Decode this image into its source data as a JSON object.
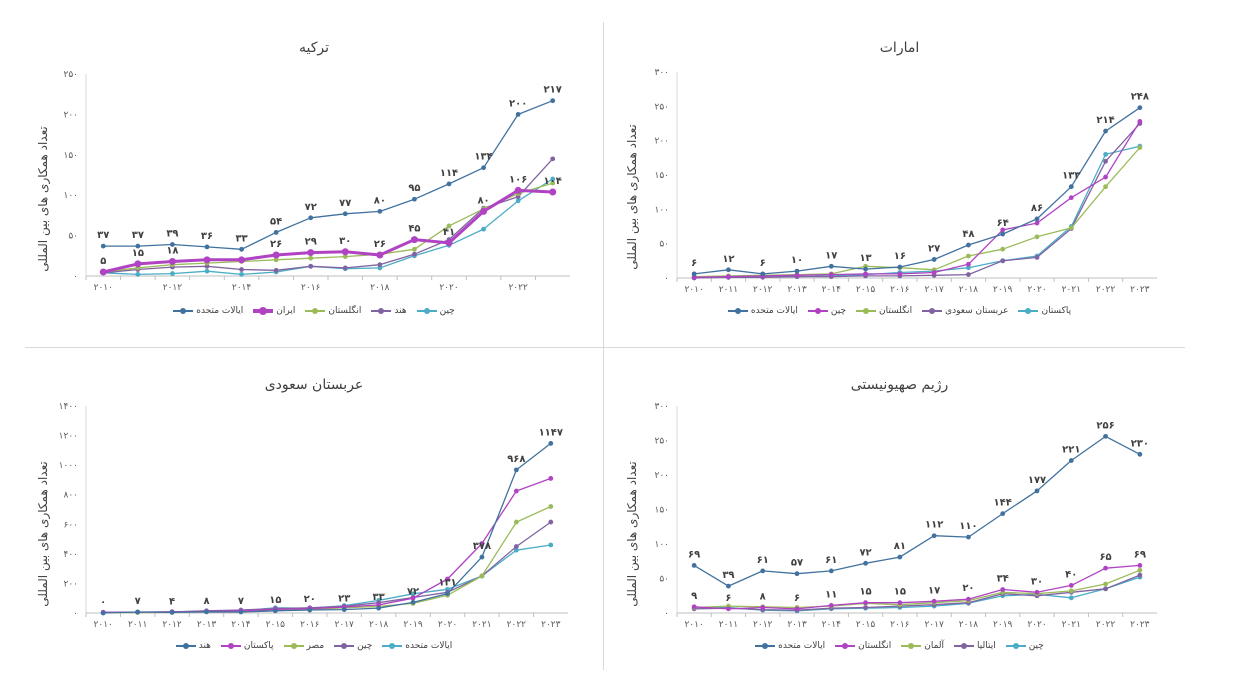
{
  "chart_data": [
    {
      "id": "turkey",
      "type": "line",
      "title": "ترکیه",
      "ylabel": "تعداد همکاری های بین المللی",
      "ylim": [
        0,
        250
      ],
      "yticks": [
        "۰",
        "۵۰",
        "۱۰۰",
        "۱۵۰",
        "۲۰۰",
        "۲۵۰"
      ],
      "x": [
        2010,
        2011,
        2012,
        2013,
        2014,
        2015,
        2016,
        2017,
        2018,
        2019,
        2020,
        2021,
        2022,
        2023
      ],
      "xlabels": [
        "۲۰۱۰",
        "",
        "۲۰۱۲",
        "",
        "۲۰۱۴",
        "",
        "۲۰۱۶",
        "",
        "۲۰۱۸",
        "",
        "۲۰۲۰",
        "",
        "۲۰۲۲",
        ""
      ],
      "series": [
        {
          "name": "ایالات متحده",
          "color": "#41729f",
          "width": 1.3,
          "values": [
            37,
            37,
            39,
            36,
            33,
            54,
            72,
            77,
            80,
            95,
            114,
            134,
            200,
            217
          ],
          "labels": [
            "۳۷",
            "۳۷",
            "۳۹",
            "۳۶",
            "۳۳",
            "۵۴",
            "۷۲",
            "۷۷",
            "۸۰",
            "۹۵",
            "۱۱۴",
            "۱۳۴",
            "۲۰۰",
            "۲۱۷"
          ]
        },
        {
          "name": "ایران",
          "color": "#b043c3",
          "width": 3,
          "values": [
            5,
            15,
            18,
            20,
            20,
            26,
            29,
            30,
            26,
            45,
            41,
            80,
            106,
            104
          ],
          "labels": [
            "۵",
            "۱۵",
            "۱۸",
            "",
            "",
            "۲۶",
            "۲۹",
            "۳۰",
            "۲۶",
            "۴۵",
            "۴۱",
            "۸۰",
            "۱۰۶",
            "۱۰۴"
          ]
        },
        {
          "name": "انگلستان",
          "color": "#9bbb59",
          "width": 1.3,
          "values": [
            5,
            10,
            14,
            16,
            18,
            20,
            22,
            24,
            27,
            33,
            62,
            83,
            102,
            115
          ]
        },
        {
          "name": "هند",
          "color": "#8064a2",
          "width": 1.3,
          "values": [
            4,
            8,
            11,
            12,
            8,
            7,
            12,
            10,
            14,
            27,
            45,
            84,
            98,
            145
          ]
        },
        {
          "name": "چین",
          "color": "#4bacc6",
          "width": 1.3,
          "values": [
            4,
            2,
            3,
            6,
            2,
            5,
            12,
            9,
            10,
            25,
            38,
            58,
            93,
            120
          ]
        }
      ]
    },
    {
      "id": "emirates",
      "type": "line",
      "title": "امارات",
      "ylabel": "تعداد همکاری های بین المللی",
      "ylim": [
        0,
        300
      ],
      "yticks": [
        "۰",
        "۵۰",
        "۱۰۰",
        "۱۵۰",
        "۲۰۰",
        "۲۵۰",
        "۳۰۰"
      ],
      "x": [
        2010,
        2011,
        2012,
        2013,
        2014,
        2015,
        2016,
        2017,
        2018,
        2019,
        2020,
        2021,
        2022,
        2023
      ],
      "xlabels": [
        "۲۰۱۰",
        "۲۰۱۱",
        "۲۰۱۲",
        "۲۰۱۳",
        "۲۰۱۴",
        "۲۰۱۵",
        "۲۰۱۶",
        "۲۰۱۷",
        "۲۰۱۸",
        "۲۰۱۹",
        "۲۰۲۰",
        "۲۰۲۱",
        "۲۰۲۲",
        "۲۰۲۳"
      ],
      "series": [
        {
          "name": "ایالات متحده",
          "color": "#41729f",
          "width": 1.3,
          "values": [
            6,
            12,
            6,
            10,
            17,
            13,
            16,
            27,
            48,
            64,
            86,
            133,
            214,
            248
          ],
          "labels": [
            "۶",
            "۱۲",
            "۶",
            "۱۰",
            "۱۷",
            "۱۳",
            "۱۶",
            "۲۷",
            "۴۸",
            "۶۴",
            "۸۶",
            "۱۳۳",
            "۲۱۴",
            "۲۴۸"
          ]
        },
        {
          "name": "چین",
          "color": "#b043c3",
          "width": 1.3,
          "values": [
            1,
            2,
            3,
            4,
            5,
            6,
            6,
            8,
            20,
            70,
            80,
            117,
            147,
            228
          ]
        },
        {
          "name": "انگلستان",
          "color": "#9bbb59",
          "width": 1.3,
          "values": [
            2,
            3,
            4,
            5,
            6,
            17,
            15,
            12,
            32,
            42,
            60,
            73,
            133,
            190
          ]
        },
        {
          "name": "عربستان سعودی",
          "color": "#8064a2",
          "width": 1.3,
          "values": [
            0,
            1,
            1,
            2,
            2,
            3,
            3,
            4,
            5,
            25,
            30,
            72,
            170,
            225
          ]
        },
        {
          "name": "پاکستان",
          "color": "#4bacc6",
          "width": 1.3,
          "values": [
            1,
            1,
            2,
            2,
            3,
            5,
            8,
            10,
            15,
            25,
            32,
            75,
            180,
            192
          ]
        }
      ]
    },
    {
      "id": "saudi",
      "type": "line",
      "title": "عربستان سعودی",
      "ylabel": "تعداد همکاری های بین المللی",
      "ylim": [
        0,
        1400
      ],
      "yticks": [
        "۰",
        "۲۰۰",
        "۴۰۰",
        "۶۰۰",
        "۸۰۰",
        "۱۰۰۰",
        "۱۲۰۰",
        "۱۴۰۰"
      ],
      "x": [
        2010,
        2011,
        2012,
        2013,
        2014,
        2015,
        2016,
        2017,
        2018,
        2019,
        2020,
        2021,
        2022,
        2023
      ],
      "xlabels": [
        "۲۰۱۰",
        "۲۰۱۱",
        "۲۰۱۲",
        "۲۰۱۳",
        "۲۰۱۴",
        "۲۰۱۵",
        "۲۰۱۶",
        "۲۰۱۷",
        "۲۰۱۸",
        "۲۰۱۹",
        "۲۰۲۰",
        "۲۰۲۱",
        "۲۰۲۲",
        "۲۰۲۳"
      ],
      "series": [
        {
          "name": "هند",
          "color": "#41729f",
          "width": 1.3,
          "values": [
            0,
            7,
            4,
            8,
            7,
            15,
            20,
            23,
            33,
            72,
            131,
            378,
            968,
            1147
          ],
          "labels": [
            "۰",
            "۷",
            "۴",
            "۸",
            "۷",
            "۱۵",
            "۲۰",
            "۲۳",
            "۳۳",
            "۷۲",
            "۱۳۱",
            "۳۷۸",
            "۹۶۸",
            "۱۱۴۷"
          ]
        },
        {
          "name": "پاکستان",
          "color": "#b043c3",
          "width": 1.3,
          "values": [
            5,
            6,
            8,
            10,
            15,
            25,
            30,
            40,
            55,
            100,
            230,
            470,
            825,
            910
          ]
        },
        {
          "name": "مصر",
          "color": "#9bbb59",
          "width": 1.3,
          "values": [
            2,
            3,
            5,
            8,
            12,
            18,
            25,
            35,
            45,
            65,
            120,
            250,
            615,
            720
          ]
        },
        {
          "name": "چین",
          "color": "#8064a2",
          "width": 1.3,
          "values": [
            3,
            5,
            7,
            15,
            20,
            30,
            35,
            45,
            70,
            105,
            140,
            250,
            450,
            615
          ]
        },
        {
          "name": "ایالات متحده",
          "color": "#4bacc6",
          "width": 1.3,
          "values": [
            4,
            6,
            8,
            12,
            15,
            35,
            32,
            50,
            85,
            130,
            160,
            250,
            425,
            460
          ]
        }
      ]
    },
    {
      "id": "zionist",
      "type": "line",
      "title": "رژیم صهیونیستی",
      "ylabel": "تعداد همکاری های بین المللی",
      "ylim": [
        0,
        300
      ],
      "yticks": [
        "۰",
        "۵۰",
        "۱۰۰",
        "۱۵۰",
        "۲۰۰",
        "۲۵۰",
        "۳۰۰"
      ],
      "x": [
        2010,
        2011,
        2012,
        2013,
        2014,
        2015,
        2016,
        2017,
        2018,
        2019,
        2020,
        2021,
        2022,
        2023
      ],
      "xlabels": [
        "۲۰۱۰",
        "۲۰۱۱",
        "۲۰۱۲",
        "۲۰۱۳",
        "۲۰۱۴",
        "۲۰۱۵",
        "۲۰۱۶",
        "۲۰۱۷",
        "۲۰۱۸",
        "۲۰۱۹",
        "۲۰۲۰",
        "۲۰۲۱",
        "۲۰۲۲",
        "۲۰۲۳"
      ],
      "series": [
        {
          "name": "ایالات متحده",
          "color": "#41729f",
          "width": 1.3,
          "values": [
            69,
            39,
            61,
            57,
            61,
            72,
            81,
            112,
            110,
            144,
            177,
            221,
            256,
            230
          ],
          "labels": [
            "۶۹",
            "۳۹",
            "۶۱",
            "۵۷",
            "۶۱",
            "۷۲",
            "۸۱",
            "۱۱۲",
            "۱۱۰",
            "۱۴۴",
            "۱۷۷",
            "۲۲۱",
            "۲۵۶",
            "۲۳۰"
          ]
        },
        {
          "name": "انگلستان",
          "color": "#b043c3",
          "width": 1.3,
          "values": [
            9,
            6,
            8,
            6,
            11,
            15,
            15,
            17,
            20,
            34,
            30,
            40,
            65,
            69
          ],
          "labels": [
            "۹",
            "۶",
            "۸",
            "۶",
            "۱۱",
            "۱۵",
            "۱۵",
            "۱۷",
            "۲۰",
            "۳۴",
            "۳۰",
            "۴۰",
            "۶۵",
            "۶۹"
          ]
        },
        {
          "name": "آلمان",
          "color": "#9bbb59",
          "width": 1.3,
          "values": [
            8,
            10,
            9,
            8,
            10,
            14,
            12,
            15,
            18,
            30,
            28,
            32,
            42,
            62
          ]
        },
        {
          "name": "ایتالیا",
          "color": "#8064a2",
          "width": 1.3,
          "values": [
            6,
            7,
            5,
            4,
            7,
            8,
            10,
            12,
            15,
            28,
            25,
            30,
            35,
            55
          ]
        },
        {
          "name": "چین",
          "color": "#4bacc6",
          "width": 1.3,
          "values": [
            7,
            8,
            4,
            3,
            6,
            7,
            8,
            10,
            14,
            25,
            27,
            22,
            35,
            52
          ]
        }
      ]
    }
  ]
}
